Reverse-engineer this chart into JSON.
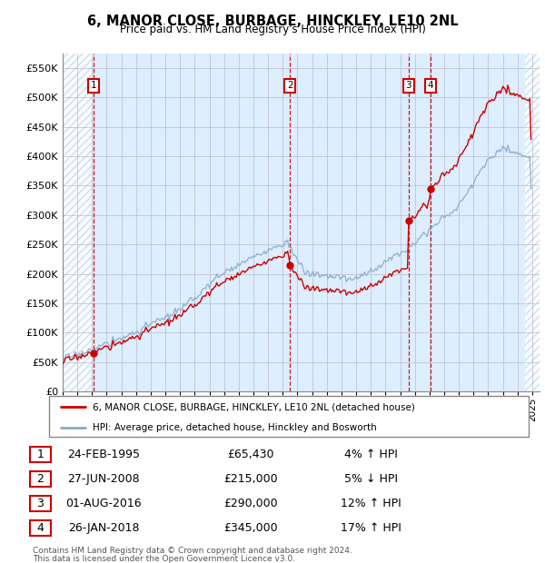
{
  "title": "6, MANOR CLOSE, BURBAGE, HINCKLEY, LE10 2NL",
  "subtitle": "Price paid vs. HM Land Registry's House Price Index (HPI)",
  "ylim": [
    0,
    575000
  ],
  "yticks": [
    0,
    50000,
    100000,
    150000,
    200000,
    250000,
    300000,
    350000,
    400000,
    450000,
    500000,
    550000
  ],
  "ytick_labels": [
    "£0",
    "£50K",
    "£100K",
    "£150K",
    "£200K",
    "£250K",
    "£300K",
    "£350K",
    "£400K",
    "£450K",
    "£500K",
    "£550K"
  ],
  "xlim_start": 1993.0,
  "xlim_end": 2025.5,
  "background_color": "#ddeeff",
  "hatch_color": "#c8d8e8",
  "grid_color": "#bbbbcc",
  "sale_line_color": "#cc0000",
  "hpi_line_color": "#88aacc",
  "sale_marker_color": "#cc0000",
  "transactions": [
    {
      "num": 1,
      "date_label": "24-FEB-1995",
      "date_x": 1995.12,
      "price": 65430,
      "pct": "4%",
      "direction": "↑"
    },
    {
      "num": 2,
      "date_label": "27-JUN-2008",
      "date_x": 2008.49,
      "price": 215000,
      "pct": "5%",
      "direction": "↓"
    },
    {
      "num": 3,
      "date_label": "01-AUG-2016",
      "date_x": 2016.58,
      "price": 290000,
      "pct": "12%",
      "direction": "↑"
    },
    {
      "num": 4,
      "date_label": "26-JAN-2018",
      "date_x": 2018.07,
      "price": 345000,
      "pct": "17%",
      "direction": "↑"
    }
  ],
  "legend_entry1": "6, MANOR CLOSE, BURBAGE, HINCKLEY, LE10 2NL (detached house)",
  "legend_entry2": "HPI: Average price, detached house, Hinckley and Bosworth",
  "footer1": "Contains HM Land Registry data © Crown copyright and database right 2024.",
  "footer2": "This data is licensed under the Open Government Licence v3.0.",
  "table_rows": [
    [
      "1",
      "24-FEB-1995",
      "£65,430",
      "4% ↑ HPI"
    ],
    [
      "2",
      "27-JUN-2008",
      "£215,000",
      "5% ↓ HPI"
    ],
    [
      "3",
      "01-AUG-2016",
      "£290,000",
      "12% ↑ HPI"
    ],
    [
      "4",
      "26-JAN-2018",
      "£345,000",
      "17% ↑ HPI"
    ]
  ],
  "hatch_left_end": 1995.0,
  "hatch_right_start": 2024.5
}
